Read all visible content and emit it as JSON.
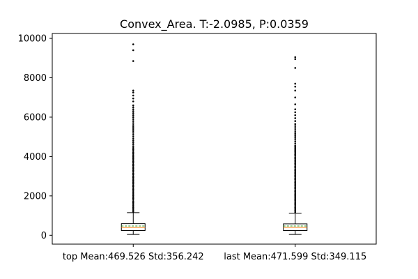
{
  "chart_data": {
    "type": "box",
    "title": "Convex_Area. T:-2.0985, P:0.0359",
    "xlabel": "",
    "ylabel": "",
    "ylim": [
      -450,
      10250
    ],
    "yticks": [
      0,
      2000,
      4000,
      6000,
      8000,
      10000
    ],
    "ytick_labels": [
      "0",
      "2000",
      "4000",
      "6000",
      "8000",
      "10000"
    ],
    "grid": false,
    "categories": [
      "top Mean:469.526 Std:356.242",
      "last Mean:471.599 Std:349.115"
    ],
    "boxes": [
      {
        "label": "top Mean:469.526 Std:356.242",
        "whisker_low": 40,
        "q1": 240,
        "median": 395,
        "mean": 470,
        "q3": 590,
        "whisker_high": 1150,
        "outliers": [
          1200,
          1280,
          1350,
          1420,
          1500,
          1580,
          1650,
          1720,
          1800,
          1880,
          1950,
          2020,
          2100,
          2180,
          2250,
          2330,
          2400,
          2480,
          2550,
          2630,
          2700,
          2780,
          2850,
          2930,
          3000,
          3080,
          3150,
          3230,
          3300,
          3380,
          3450,
          3530,
          3600,
          3680,
          3750,
          3830,
          3900,
          3980,
          4050,
          4130,
          4200,
          4280,
          4350,
          4430,
          4500,
          4600,
          4700,
          4800,
          4900,
          5000,
          5100,
          5200,
          5300,
          5400,
          5500,
          5600,
          5700,
          5800,
          5900,
          6000,
          6100,
          6200,
          6300,
          6400,
          6500,
          6600,
          6800,
          6950,
          7100,
          7250,
          7350,
          8850,
          9400,
          9700
        ]
      },
      {
        "label": "last Mean:471.599 Std:349.115",
        "whisker_low": 40,
        "q1": 240,
        "median": 400,
        "mean": 472,
        "q3": 580,
        "whisker_high": 1120,
        "outliers": [
          1180,
          1260,
          1330,
          1400,
          1480,
          1550,
          1630,
          1700,
          1780,
          1850,
          1930,
          2000,
          2080,
          2150,
          2230,
          2300,
          2380,
          2450,
          2530,
          2600,
          2680,
          2750,
          2830,
          2900,
          2980,
          3050,
          3130,
          3200,
          3280,
          3350,
          3430,
          3500,
          3580,
          3650,
          3730,
          3800,
          3880,
          3950,
          4030,
          4100,
          4180,
          4250,
          4330,
          4400,
          4480,
          4550,
          4650,
          4750,
          4850,
          4950,
          5050,
          5150,
          5250,
          5350,
          5450,
          5550,
          5650,
          5800,
          5950,
          6100,
          6250,
          6400,
          6650,
          7000,
          7350,
          7550,
          7700,
          8500,
          8950,
          9050
        ]
      }
    ]
  }
}
